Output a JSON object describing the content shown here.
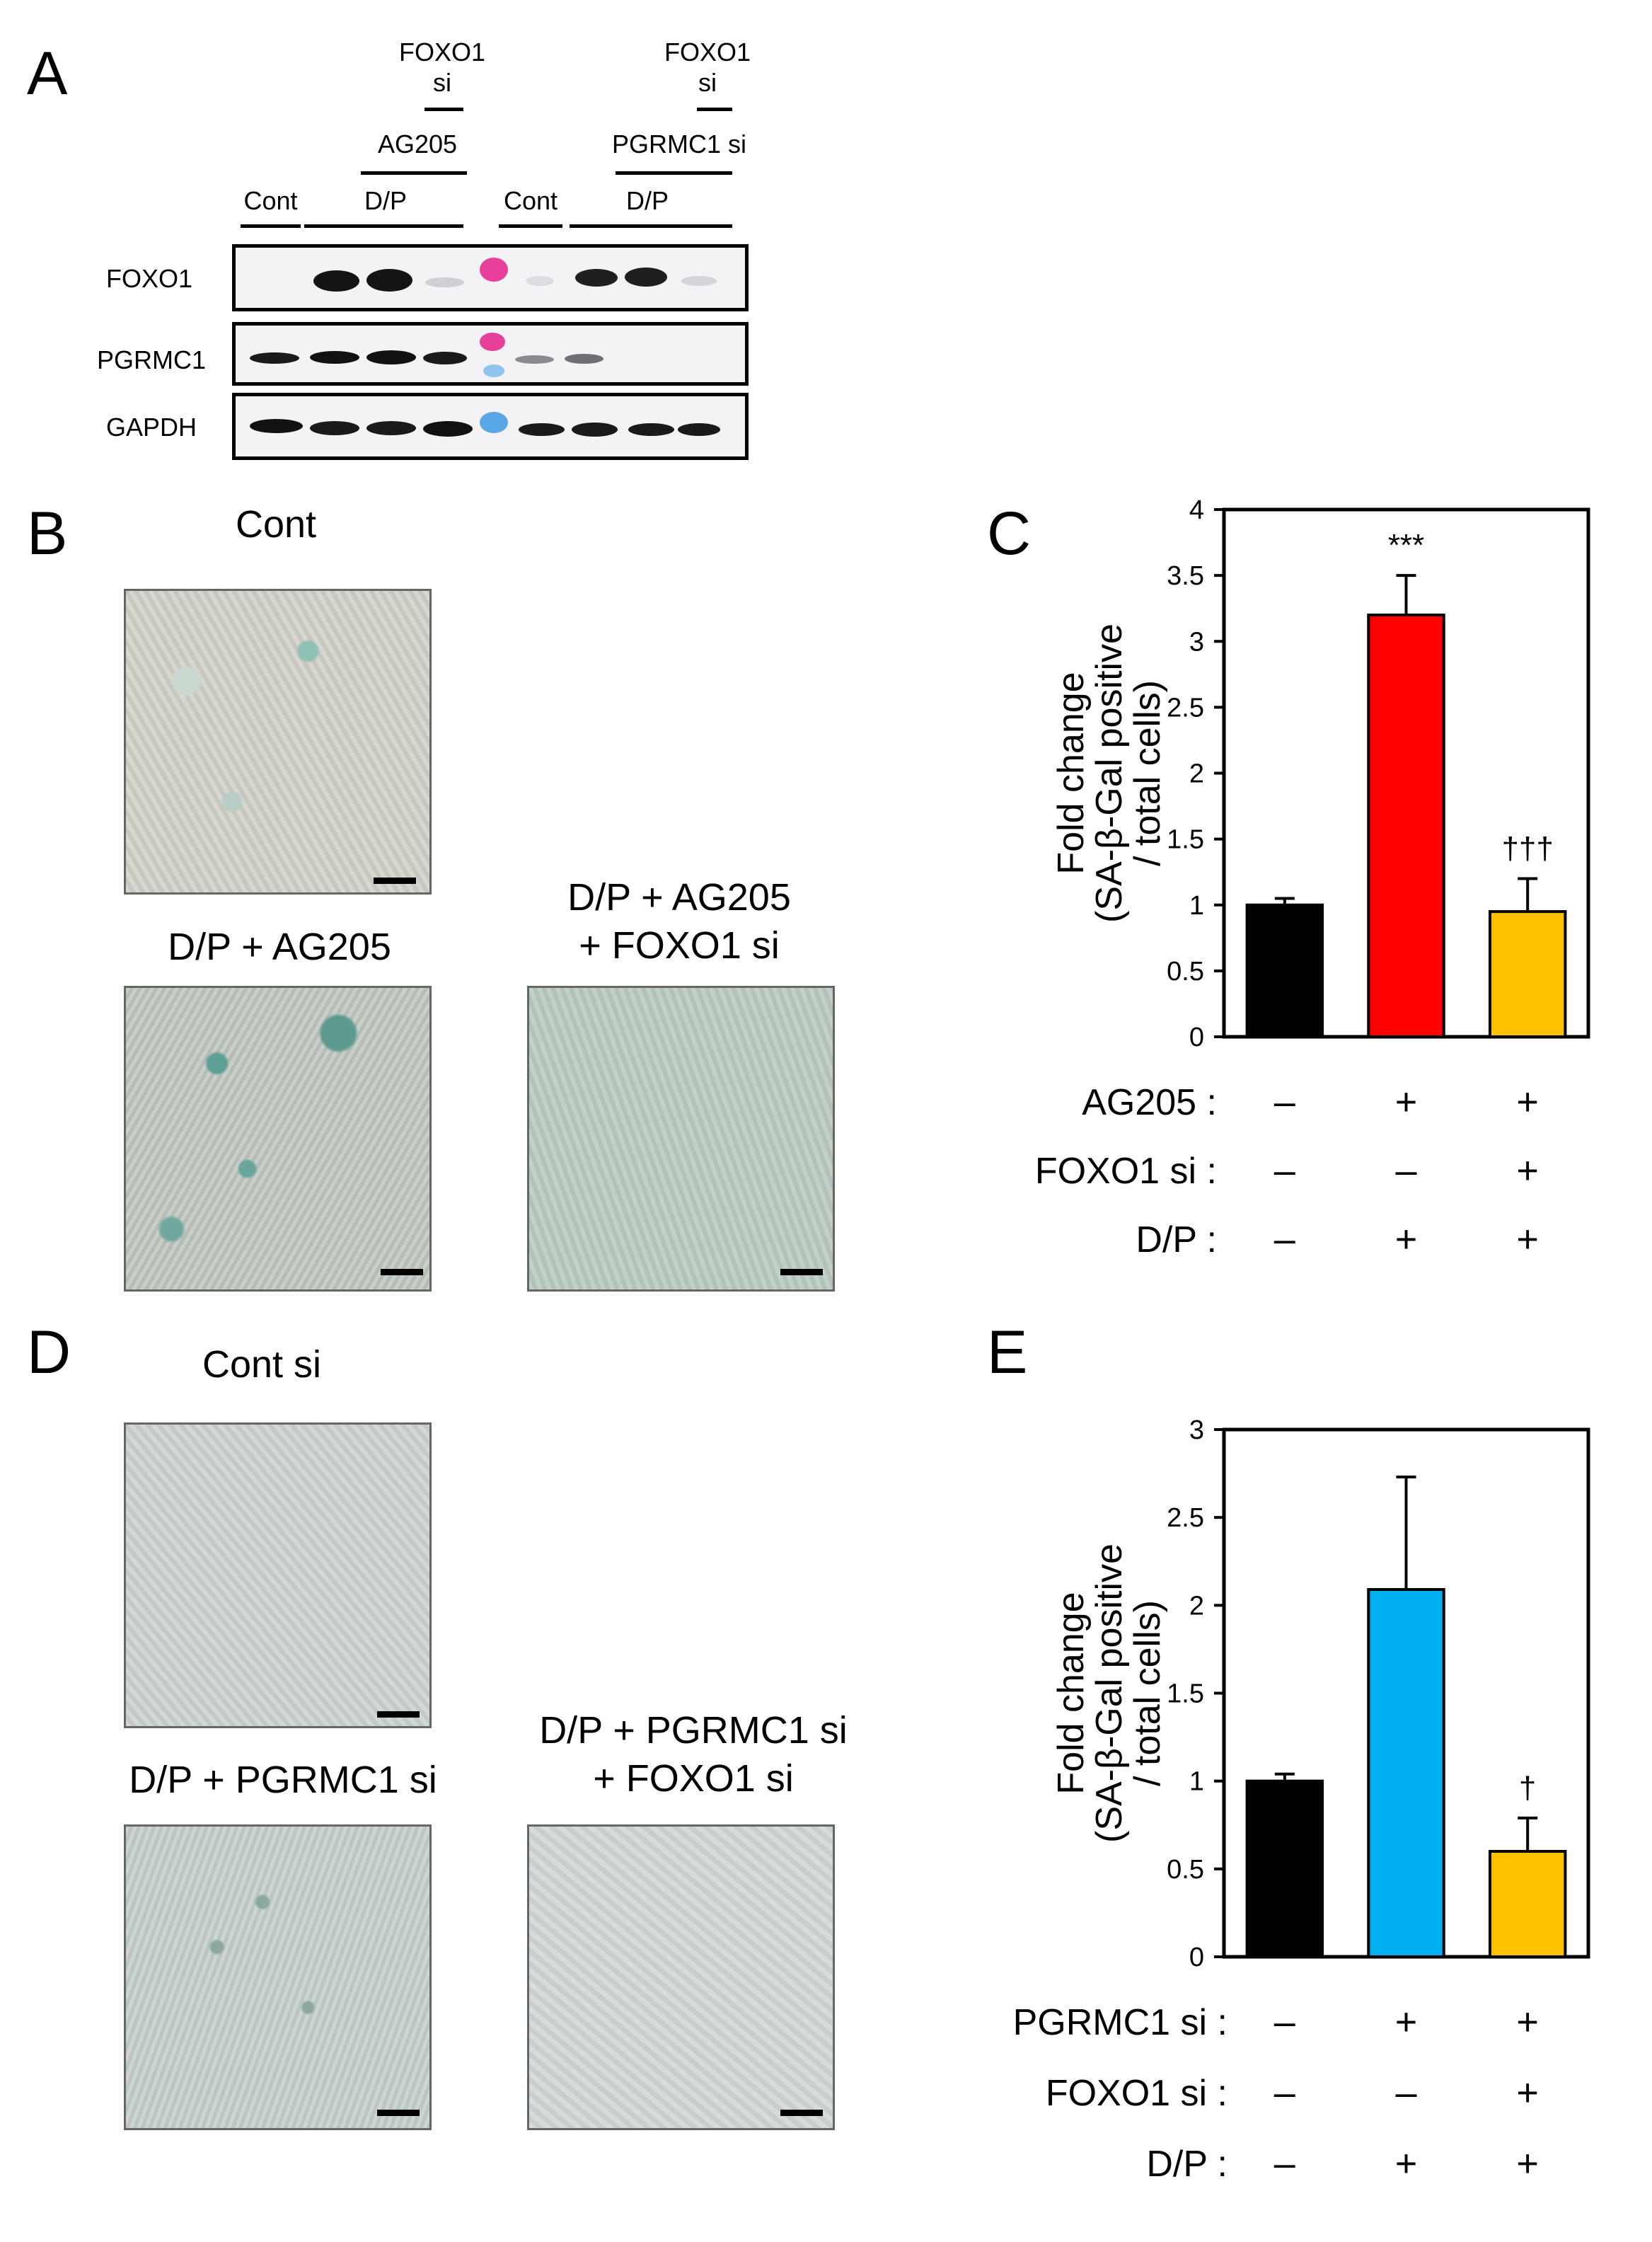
{
  "panels": {
    "A": "A",
    "B": "B",
    "C": "C",
    "D": "D",
    "E": "E"
  },
  "western_blot": {
    "headers": {
      "foxo1_si_1": [
        "FOXO1",
        "si"
      ],
      "ag205": "AG205",
      "foxo1_si_2": [
        "FOXO1",
        "si"
      ],
      "pgrmc1_si": "PGRMC1 si",
      "cont_1": "Cont",
      "dp_1": "D/P",
      "cont_2": "Cont",
      "dp_2": "D/P"
    },
    "row_labels": [
      "FOXO1",
      "PGRMC1",
      "GAPDH"
    ],
    "colors": {
      "band": "#141414",
      "marker_pink": "#e8409a",
      "marker_blue": "#5aa7e6"
    }
  },
  "micrographs": {
    "B": {
      "cont": "Cont",
      "dp_ag205": "D/P + AG205",
      "dp_ag205_foxo1": [
        "D/P + AG205",
        "+ FOXO1 si"
      ]
    },
    "D": {
      "cont_si": "Cont si",
      "dp_pgrmc1": "D/P + PGRMC1 si",
      "dp_pgrmc1_foxo1": [
        "D/P + PGRMC1 si",
        "+ FOXO1 si"
      ]
    }
  },
  "chart_data": [
    {
      "panel": "C",
      "type": "bar",
      "ylabel": [
        "Fold change",
        "(SA-β-Gal positive",
        "/ total cells)"
      ],
      "ylim": [
        0,
        4
      ],
      "yticks": [
        "0",
        "0.5",
        "1",
        "1.5",
        "2",
        "2.5",
        "3",
        "3.5",
        "4"
      ],
      "values": [
        1.0,
        3.2,
        0.95
      ],
      "errors": [
        0.05,
        0.3,
        0.25
      ],
      "colors": [
        "#000000",
        "#ff0000",
        "#ffc000"
      ],
      "annotations": [
        "",
        "***",
        "†††"
      ],
      "conditions": [
        {
          "label": "AG205 :",
          "signs": [
            "–",
            "+",
            "+"
          ]
        },
        {
          "label": "FOXO1 si :",
          "signs": [
            "–",
            "–",
            "+"
          ]
        },
        {
          "label": "D/P :",
          "signs": [
            "–",
            "+",
            "+"
          ]
        }
      ]
    },
    {
      "panel": "E",
      "type": "bar",
      "ylabel": [
        "Fold change",
        "(SA-β-Gal positive",
        "/ total cells)"
      ],
      "ylim": [
        0,
        3
      ],
      "yticks": [
        "0",
        "0.5",
        "1",
        "1.5",
        "2",
        "2.5",
        "3"
      ],
      "values": [
        1.0,
        2.09,
        0.6
      ],
      "errors": [
        0.04,
        0.64,
        0.19
      ],
      "colors": [
        "#000000",
        "#00b0f0",
        "#ffc000"
      ],
      "annotations": [
        "",
        "",
        "†"
      ],
      "conditions": [
        {
          "label": "PGRMC1 si :",
          "signs": [
            "–",
            "+",
            "+"
          ]
        },
        {
          "label": "FOXO1 si :",
          "signs": [
            "–",
            "–",
            "+"
          ]
        },
        {
          "label": "D/P :",
          "signs": [
            "–",
            "+",
            "+"
          ]
        }
      ]
    }
  ]
}
